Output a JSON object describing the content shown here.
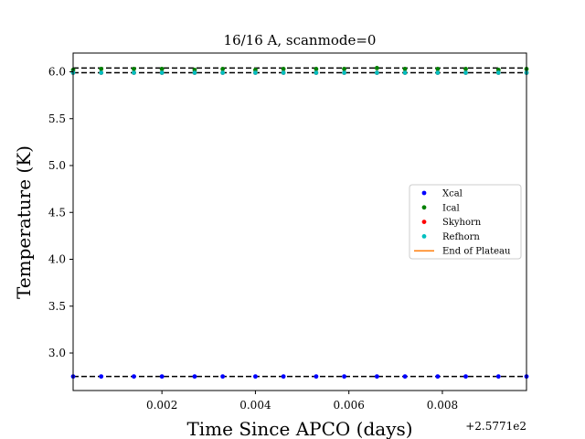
{
  "chart_data": {
    "type": "scatter",
    "title": "16/16 A, scanmode=0",
    "xlabel": "Time Since APCO (days)",
    "ylabel": "Temperature (K)",
    "x_offset_label": "+2.5771e2",
    "xlim": [
      0.0001,
      0.0098
    ],
    "ylim": [
      2.6,
      6.2
    ],
    "xticks": [
      0.002,
      0.004,
      0.006,
      0.008
    ],
    "xtick_labels": [
      "0.002",
      "0.004",
      "0.006",
      "0.008"
    ],
    "yticks": [
      3.0,
      3.5,
      4.0,
      4.5,
      5.0,
      5.5,
      6.0
    ],
    "ytick_labels": [
      "3.0",
      "3.5",
      "4.0",
      "4.5",
      "5.0",
      "5.5",
      "6.0"
    ],
    "x": [
      0.0001,
      0.0007,
      0.0014,
      0.002,
      0.0027,
      0.0033,
      0.004,
      0.0046,
      0.0053,
      0.0059,
      0.0066,
      0.0072,
      0.0079,
      0.0085,
      0.0092,
      0.0098
    ],
    "series": [
      {
        "name": "Xcal",
        "color": "#0000ff",
        "values": [
          2.75,
          2.75,
          2.75,
          2.75,
          2.75,
          2.75,
          2.75,
          2.75,
          2.75,
          2.75,
          2.75,
          2.75,
          2.75,
          2.75,
          2.75,
          2.75
        ]
      },
      {
        "name": "Ical",
        "color": "#008000",
        "values": [
          6.02,
          6.03,
          6.03,
          6.03,
          6.02,
          6.03,
          6.02,
          6.03,
          6.03,
          6.03,
          6.04,
          6.03,
          6.03,
          6.03,
          6.02,
          6.03
        ]
      },
      {
        "name": "Skyhorn",
        "color": "#ff0000",
        "values": [
          5.99,
          5.99,
          5.99,
          5.99,
          5.99,
          5.99,
          5.99,
          5.99,
          5.99,
          5.99,
          5.99,
          5.99,
          5.99,
          5.99,
          5.99,
          5.99
        ]
      },
      {
        "name": "Refhorn",
        "color": "#00bfbf",
        "values": [
          5.99,
          5.99,
          5.99,
          5.99,
          5.99,
          5.99,
          5.99,
          5.99,
          5.99,
          5.99,
          5.99,
          5.99,
          5.99,
          5.99,
          5.99,
          5.99
        ]
      }
    ],
    "reference_lines": [
      {
        "y": 2.75,
        "color": "#000000",
        "style": "dashed"
      },
      {
        "y": 5.99,
        "color": "#000000",
        "style": "dashed"
      },
      {
        "y": 6.04,
        "color": "#000000",
        "style": "dashed"
      }
    ],
    "legend": {
      "placement": "center-right",
      "entries": [
        {
          "label": "Xcal",
          "kind": "marker",
          "color": "#0000ff"
        },
        {
          "label": "Ical",
          "kind": "marker",
          "color": "#008000"
        },
        {
          "label": "Skyhorn",
          "kind": "marker",
          "color": "#ff0000"
        },
        {
          "label": "Refhorn",
          "kind": "marker",
          "color": "#00bfbf"
        },
        {
          "label": "End of Plateau",
          "kind": "line",
          "color": "#ff7f0e"
        }
      ]
    },
    "grid": false
  }
}
